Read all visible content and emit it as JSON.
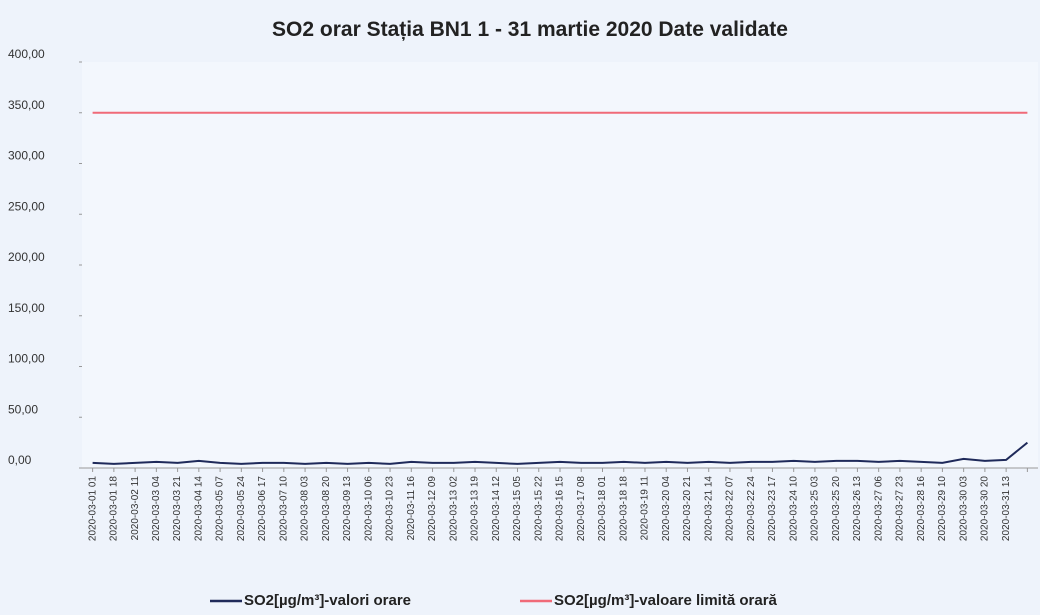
{
  "chart_data": {
    "type": "line",
    "title": "SO2 orar Stația BN1 1 - 31 martie 2020 Date validate",
    "categories": [
      "2020-03-01 01",
      "2020-03-01 18",
      "2020-03-02 11",
      "2020-03-03 04",
      "2020-03-03 21",
      "2020-03-04 14",
      "2020-03-05 07",
      "2020-03-05 24",
      "2020-03-06 17",
      "2020-03-07 10",
      "2020-03-08 03",
      "2020-03-08 20",
      "2020-03-09 13",
      "2020-03-10 06",
      "2020-03-10 23",
      "2020-03-11 16",
      "2020-03-12 09",
      "2020-03-13 02",
      "2020-03-13 19",
      "2020-03-14 12",
      "2020-03-15 05",
      "2020-03-15 22",
      "2020-03-16 15",
      "2020-03-17 08",
      "2020-03-18 01",
      "2020-03-18 18",
      "2020-03-19 11",
      "2020-03-20 04",
      "2020-03-20 21",
      "2020-03-21 14",
      "2020-03-22 07",
      "2020-03-22 24",
      "2020-03-23 17",
      "2020-03-24 10",
      "2020-03-25 03",
      "2020-03-25 20",
      "2020-03-26 13",
      "2020-03-27 06",
      "2020-03-27 23",
      "2020-03-28 16",
      "2020-03-29 10",
      "2020-03-30 03",
      "2020-03-30 20",
      "2020-03-31 13",
      null
    ],
    "series": [
      {
        "name": "SO2[µg/m³]-valori orare",
        "color": "#1f2a5a",
        "values": [
          5,
          4,
          5,
          6,
          5,
          7,
          5,
          4,
          5,
          5,
          4,
          5,
          4,
          5,
          4,
          6,
          5,
          5,
          6,
          5,
          4,
          5,
          6,
          5,
          5,
          6,
          5,
          6,
          5,
          6,
          5,
          6,
          6,
          7,
          6,
          7,
          7,
          6,
          7,
          6,
          5,
          9,
          7,
          8,
          25
        ]
      },
      {
        "name": "SO2[µg/m³]-valoare limită orară",
        "color": "#f06a78",
        "values": [
          350,
          350,
          350,
          350,
          350,
          350,
          350,
          350,
          350,
          350,
          350,
          350,
          350,
          350,
          350,
          350,
          350,
          350,
          350,
          350,
          350,
          350,
          350,
          350,
          350,
          350,
          350,
          350,
          350,
          350,
          350,
          350,
          350,
          350,
          350,
          350,
          350,
          350,
          350,
          350,
          350,
          350,
          350,
          350,
          350
        ]
      }
    ],
    "ylim": [
      0,
      400
    ],
    "yticks": [
      {
        "value": 0,
        "label": "0,00"
      },
      {
        "value": 50,
        "label": "50,00"
      },
      {
        "value": 100,
        "label": "100,00"
      },
      {
        "value": 150,
        "label": "150,00"
      },
      {
        "value": 200,
        "label": "200,00"
      },
      {
        "value": 250,
        "label": "250,00"
      },
      {
        "value": 300,
        "label": "300,00"
      },
      {
        "value": 350,
        "label": "350,00"
      },
      {
        "value": 400,
        "label": "400,00"
      }
    ],
    "grid": false
  }
}
